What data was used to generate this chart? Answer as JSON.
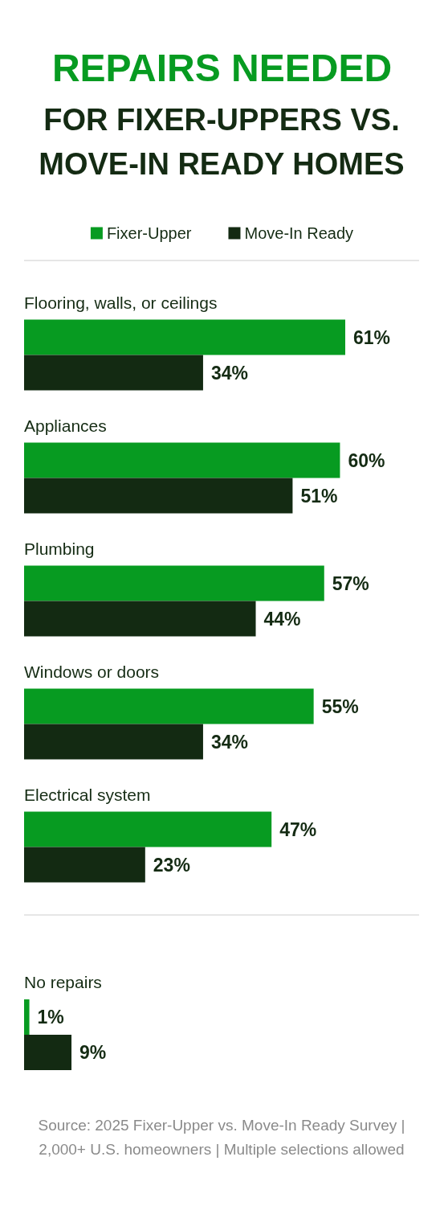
{
  "chart_data": [
    {
      "type": "bar",
      "orientation": "horizontal",
      "title": "REPAIRS NEEDED",
      "subtitle": "FOR FIXER-UPPERS VS. MOVE-IN READY HOMES",
      "categories": [
        "Flooring, walls, or ceilings",
        "Appliances",
        "Plumbing",
        "Windows or doors",
        "Electrical system"
      ],
      "series": [
        {
          "name": "Fixer-Upper",
          "color": "#079b21",
          "values": [
            61,
            60,
            57,
            55,
            47
          ],
          "value_labels": [
            "61%",
            "60%",
            "57%",
            "55%",
            "47%"
          ]
        },
        {
          "name": "Move-In Ready",
          "color": "#132a12",
          "values": [
            34,
            51,
            44,
            34,
            23
          ],
          "value_labels": [
            "34%",
            "51%",
            "44%",
            "34%",
            "23%"
          ]
        }
      ],
      "legend": "top",
      "tick_labels": "y"
    },
    {
      "type": "bar",
      "orientation": "horizontal",
      "categories": [
        "No repairs"
      ],
      "series": [
        {
          "color": "#079b21",
          "values": [
            1
          ],
          "value_labels": [
            "1%"
          ]
        },
        {
          "color": "#132a12",
          "values": [
            9
          ],
          "value_labels": [
            "9%"
          ]
        }
      ],
      "tick_labels": "y",
      "annotations": [
        "Source: 2025 Fixer-Upper vs. Move-In Ready Survey | 2,000+ U.S. homeowners | Multiple selections allowed"
      ]
    }
  ]
}
